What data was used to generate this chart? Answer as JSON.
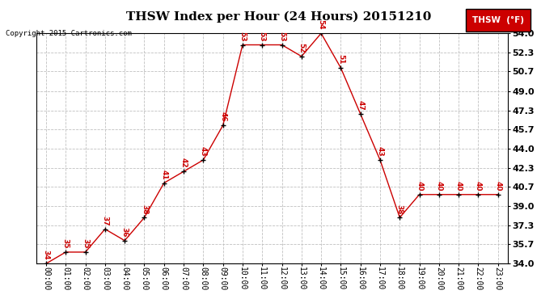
{
  "title": "THSW Index per Hour (24 Hours) 20151210",
  "copyright": "Copyright 2015 Cartronics.com",
  "legend_label": "THSW  (°F)",
  "hours": [
    0,
    1,
    2,
    3,
    4,
    5,
    6,
    7,
    8,
    9,
    10,
    11,
    12,
    13,
    14,
    15,
    16,
    17,
    18,
    19,
    20,
    21,
    22,
    23
  ],
  "x_labels": [
    "00:00",
    "01:00",
    "02:00",
    "03:00",
    "04:00",
    "05:00",
    "06:00",
    "07:00",
    "08:00",
    "09:00",
    "10:00",
    "11:00",
    "12:00",
    "13:00",
    "14:00",
    "15:00",
    "16:00",
    "17:00",
    "18:00",
    "19:00",
    "20:00",
    "21:00",
    "22:00",
    "23:00"
  ],
  "values": [
    34,
    35,
    35,
    37,
    36,
    38,
    41,
    42,
    43,
    46,
    53,
    53,
    53,
    52,
    54,
    51,
    47,
    43,
    38,
    40,
    40,
    40,
    40,
    40
  ],
  "ylim": [
    34.0,
    54.0
  ],
  "yticks": [
    34.0,
    35.7,
    37.3,
    39.0,
    40.7,
    42.3,
    44.0,
    45.7,
    47.3,
    49.0,
    50.7,
    52.3,
    54.0
  ],
  "ytick_labels": [
    "34.0",
    "35.7",
    "37.3",
    "39.0",
    "40.7",
    "42.3",
    "44.0",
    "45.7",
    "47.3",
    "49.0",
    "50.7",
    "52.3",
    "54.0"
  ],
  "line_color": "#cc0000",
  "marker_color": "#000000",
  "label_color": "#cc0000",
  "grid_color": "#c0c0c0",
  "bg_color": "#ffffff",
  "title_fontsize": 11,
  "copyright_fontsize": 6.5,
  "ytick_fontsize": 8,
  "xtick_fontsize": 7,
  "legend_bg": "#cc0000",
  "legend_text_color": "#ffffff",
  "legend_fontsize": 7.5
}
